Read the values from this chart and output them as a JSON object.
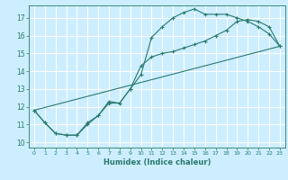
{
  "title": "",
  "xlabel": "Humidex (Indice chaleur)",
  "background_color": "#cceeff",
  "grid_color": "#ffffff",
  "line_color": "#2a7a6e",
  "xlim": [
    -0.5,
    23.5
  ],
  "ylim": [
    9.7,
    17.7
  ],
  "yticks": [
    10,
    11,
    12,
    13,
    14,
    15,
    16,
    17
  ],
  "xticks": [
    0,
    1,
    2,
    3,
    4,
    5,
    6,
    7,
    8,
    9,
    10,
    11,
    12,
    13,
    14,
    15,
    16,
    17,
    18,
    19,
    20,
    21,
    22,
    23
  ],
  "line1_x": [
    0,
    1,
    2,
    3,
    4,
    5,
    6,
    7,
    8,
    9,
    10,
    11,
    12,
    13,
    14,
    15,
    16,
    17,
    18,
    19,
    20,
    21,
    22,
    23
  ],
  "line1_y": [
    11.8,
    11.1,
    10.5,
    10.4,
    10.4,
    11.1,
    11.5,
    12.2,
    12.2,
    13.0,
    13.8,
    15.9,
    16.5,
    17.0,
    17.3,
    17.5,
    17.2,
    17.2,
    17.2,
    17.0,
    16.8,
    16.5,
    16.1,
    15.4
  ],
  "line2_x": [
    0,
    1,
    2,
    3,
    4,
    5,
    6,
    7,
    8,
    9,
    10,
    11,
    12,
    13,
    14,
    15,
    16,
    17,
    18,
    19,
    20,
    21,
    22,
    23
  ],
  "line2_y": [
    11.8,
    11.1,
    10.5,
    10.4,
    10.4,
    11.0,
    11.5,
    12.3,
    12.2,
    13.0,
    14.3,
    14.8,
    15.0,
    15.1,
    15.3,
    15.5,
    15.7,
    16.0,
    16.3,
    16.8,
    16.9,
    16.8,
    16.5,
    15.4
  ],
  "line3_x": [
    0,
    23
  ],
  "line3_y": [
    11.8,
    15.4
  ]
}
